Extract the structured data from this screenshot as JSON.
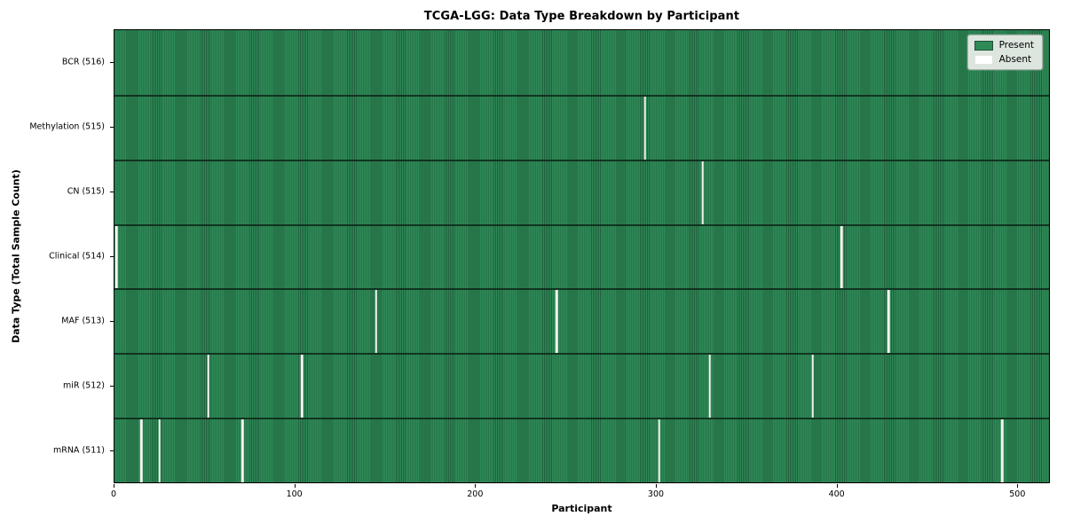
{
  "chart_data": {
    "type": "heatmap",
    "title": "TCGA-LGG: Data Type Breakdown by Participant",
    "xlabel": "Participant",
    "ylabel": "Data Type (Total Sample Count)",
    "x_ticks": [
      0,
      100,
      200,
      300,
      400,
      500
    ],
    "xlim": [
      0,
      518
    ],
    "n_participants": 516,
    "grid": false,
    "legend_position": "upper right",
    "rows": [
      {
        "key": "bcr",
        "label": "BCR (516)",
        "present_count": 516,
        "absent_participants": []
      },
      {
        "key": "methylation",
        "label": "Methylation (515)",
        "present_count": 515,
        "absent_participants": [
          294
        ]
      },
      {
        "key": "cn",
        "label": "CN (515)",
        "present_count": 515,
        "absent_participants": [
          326
        ]
      },
      {
        "key": "clinical",
        "label": "Clinical (514)",
        "present_count": 514,
        "absent_participants": [
          1,
          403
        ]
      },
      {
        "key": "maf",
        "label": "MAF (513)",
        "present_count": 513,
        "absent_participants": [
          145,
          245,
          429
        ]
      },
      {
        "key": "mir",
        "label": "miR (512)",
        "present_count": 512,
        "absent_participants": [
          52,
          104,
          330,
          387
        ]
      },
      {
        "key": "mrna",
        "label": "mRNA (511)",
        "present_count": 511,
        "absent_participants": [
          15,
          25,
          71,
          302,
          492
        ]
      }
    ],
    "legend": [
      {
        "key": "present",
        "label": "Present",
        "color": "#2e8b57"
      },
      {
        "key": "absent",
        "label": "Absent",
        "color": "#ffffff"
      }
    ],
    "colors": {
      "present_fill": "#2e8b57",
      "present_edge": "#20603d",
      "row_separator": "#0c2417",
      "absent_fill": "#f4f4ef",
      "legend_background": "#dce6de"
    }
  }
}
